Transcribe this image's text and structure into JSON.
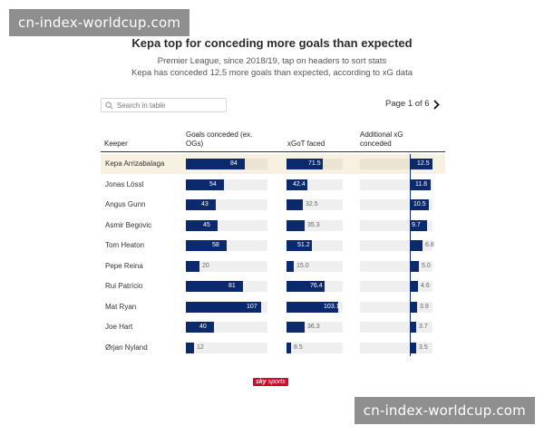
{
  "watermark": {
    "top": "cn-index-worldcup.com",
    "bottom": "cn-index-worldcup.com"
  },
  "title": "Kepa top for conceding more goals than expected",
  "subtitle_line1": "Premier League, since 2018/19, tap on headers to sort stats",
  "subtitle_line2": "Kepa has conceded 12.5 more goals than expected, according to xG data",
  "search": {
    "placeholder": "Search in table"
  },
  "pager": {
    "label": "Page 1 of 6"
  },
  "columns": {
    "keeper": "Keeper",
    "goals_line1": "Goals conceded (ex.",
    "goals_line2": "OGs)",
    "xgot": "xGoT faced",
    "addxg_line1": "Additional xG",
    "addxg_line2": "conceded"
  },
  "scales": {
    "goals_max": 107,
    "xgot_max": 103.1,
    "addxg_max": 12.5
  },
  "colors": {
    "bar": "#0b2a6e",
    "track": "#efefef",
    "highlight": "#f7f1e2",
    "brand": "#d4082a"
  },
  "rows": [
    {
      "name": "Kepa Arrizabalaga",
      "goals": 84,
      "goals_label": "84",
      "xgot": 71.5,
      "xgot_label": "71.5",
      "addxg": 12.5,
      "addxg_label": "12.5",
      "highlight": true
    },
    {
      "name": "Jonas Lössl",
      "goals": 54,
      "goals_label": "54",
      "xgot": 42.4,
      "xgot_label": "42.4",
      "addxg": 11.6,
      "addxg_label": "11.6"
    },
    {
      "name": "Angus Gunn",
      "goals": 43,
      "goals_label": "43",
      "xgot": 32.5,
      "xgot_label": "32.5",
      "addxg": 10.5,
      "addxg_label": "10.5"
    },
    {
      "name": "Asmir Begovic",
      "goals": 45,
      "goals_label": "45",
      "xgot": 35.3,
      "xgot_label": "35.3",
      "addxg": 9.7,
      "addxg_label": "9.7"
    },
    {
      "name": "Tom Heaton",
      "goals": 58,
      "goals_label": "58",
      "xgot": 51.2,
      "xgot_label": "51.2",
      "addxg": 6.8,
      "addxg_label": "6.8"
    },
    {
      "name": "Pepe Reina",
      "goals": 20,
      "goals_label": "20",
      "xgot": 15.0,
      "xgot_label": "15.0",
      "addxg": 5.0,
      "addxg_label": "5.0"
    },
    {
      "name": "Rui Patrício",
      "goals": 81,
      "goals_label": "81",
      "xgot": 76.4,
      "xgot_label": "76.4",
      "addxg": 4.6,
      "addxg_label": "4.6"
    },
    {
      "name": "Mat Ryan",
      "goals": 107,
      "goals_label": "107",
      "xgot": 103.1,
      "xgot_label": "103.1",
      "addxg": 3.9,
      "addxg_label": "3.9"
    },
    {
      "name": "Joe Hart",
      "goals": 40,
      "goals_label": "40",
      "xgot": 36.3,
      "xgot_label": "36.3",
      "addxg": 3.7,
      "addxg_label": "3.7"
    },
    {
      "name": "Ørjan Nyland",
      "goals": 12,
      "goals_label": "12",
      "xgot": 8.5,
      "xgot_label": "8.5",
      "addxg": 3.5,
      "addxg_label": "3.5"
    }
  ],
  "footer": {
    "brand_bold": "sky",
    "brand_light": "sports"
  }
}
